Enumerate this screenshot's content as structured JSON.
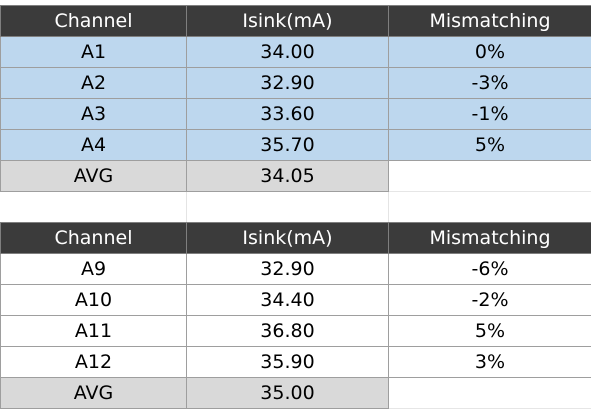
{
  "tables": [
    {
      "headers": [
        "Channel",
        "Isink(mA)",
        "Mismatching"
      ],
      "rows": [
        {
          "channel": "A1",
          "isink": "34.00",
          "mismatch": "0%"
        },
        {
          "channel": "A2",
          "isink": "32.90",
          "mismatch": "-3%"
        },
        {
          "channel": "A3",
          "isink": "33.60",
          "mismatch": "-1%"
        },
        {
          "channel": "A4",
          "isink": "35.70",
          "mismatch": "5%"
        }
      ],
      "avg": {
        "label": "AVG",
        "value": "34.05"
      },
      "row_color": "#bdd7ee"
    },
    {
      "headers": [
        "Channel",
        "Isink(mA)",
        "Mismatching"
      ],
      "rows": [
        {
          "channel": "A9",
          "isink": "32.90",
          "mismatch": "-6%"
        },
        {
          "channel": "A10",
          "isink": "34.40",
          "mismatch": "-2%"
        },
        {
          "channel": "A11",
          "isink": "36.80",
          "mismatch": "5%"
        },
        {
          "channel": "A12",
          "isink": "35.90",
          "mismatch": "3%"
        }
      ],
      "avg": {
        "label": "AVG",
        "value": "35.00"
      },
      "row_color": "#ffffff"
    }
  ],
  "colors": {
    "header_bg": "#3b3b3b",
    "header_text": "#ffffff",
    "avg_bg": "#d9d9d9",
    "blue_row_bg": "#bdd7ee"
  }
}
